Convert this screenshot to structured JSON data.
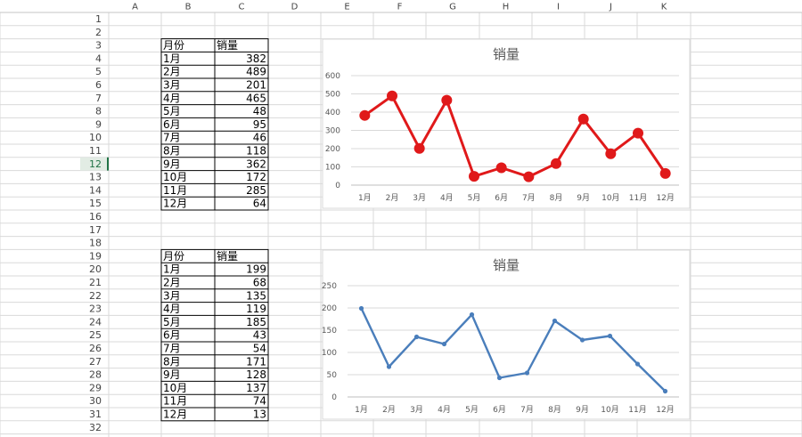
{
  "sheet": {
    "columns": [
      "A",
      "B",
      "C",
      "D",
      "E",
      "F",
      "G",
      "H",
      "I",
      "J",
      "K"
    ],
    "rows": [
      "1",
      "2",
      "3",
      "4",
      "5",
      "6",
      "7",
      "8",
      "9",
      "10",
      "11",
      "12",
      "13",
      "14",
      "15",
      "16",
      "17",
      "18",
      "19",
      "20",
      "21",
      "22",
      "23",
      "24",
      "25",
      "26",
      "27",
      "28",
      "29",
      "30",
      "31",
      "32"
    ],
    "selected_row": "12",
    "colors": {
      "grid": "#dadada",
      "header_bg": "#ffffff",
      "header_text": "#444444",
      "selected_header_bg": "#e2ece4",
      "selected_header_text": "#217346",
      "border": "#000000"
    }
  },
  "tables": [
    {
      "headers": [
        "月份",
        "销量"
      ],
      "rows": [
        [
          "1月",
          "382"
        ],
        [
          "2月",
          "489"
        ],
        [
          "3月",
          "201"
        ],
        [
          "4月",
          "465"
        ],
        [
          "5月",
          "48"
        ],
        [
          "6月",
          "95"
        ],
        [
          "7月",
          "46"
        ],
        [
          "8月",
          "118"
        ],
        [
          "9月",
          "362"
        ],
        [
          "10月",
          "172"
        ],
        [
          "11月",
          "285"
        ],
        [
          "12月",
          "64"
        ]
      ]
    },
    {
      "headers": [
        "月份",
        "销量"
      ],
      "rows": [
        [
          "1月",
          "199"
        ],
        [
          "2月",
          "68"
        ],
        [
          "3月",
          "135"
        ],
        [
          "4月",
          "119"
        ],
        [
          "5月",
          "185"
        ],
        [
          "6月",
          "43"
        ],
        [
          "7月",
          "54"
        ],
        [
          "8月",
          "171"
        ],
        [
          "9月",
          "128"
        ],
        [
          "10月",
          "137"
        ],
        [
          "11月",
          "74"
        ],
        [
          "12月",
          "13"
        ]
      ]
    }
  ],
  "chart_data": [
    {
      "type": "line",
      "title": "销量",
      "categories": [
        "1月",
        "2月",
        "3月",
        "4月",
        "5月",
        "6月",
        "7月",
        "8月",
        "9月",
        "10月",
        "11月",
        "12月"
      ],
      "values": [
        382,
        489,
        201,
        465,
        48,
        95,
        46,
        118,
        362,
        172,
        285,
        64
      ],
      "ylim": [
        0,
        600
      ],
      "yticks": [
        "0",
        "100",
        "200",
        "300",
        "400",
        "500",
        "600"
      ],
      "line_color": "#e0191a",
      "marker_color": "#e0191a",
      "marker": "large-circle",
      "grid": true
    },
    {
      "type": "line",
      "title": "销量",
      "categories": [
        "1月",
        "2月",
        "3月",
        "4月",
        "5月",
        "6月",
        "7月",
        "8月",
        "9月",
        "10月",
        "11月",
        "12月"
      ],
      "values": [
        199,
        68,
        135,
        119,
        185,
        43,
        54,
        171,
        128,
        137,
        74,
        13
      ],
      "ylim": [
        0,
        250
      ],
      "yticks": [
        "0",
        "50",
        "100",
        "150",
        "200",
        "250"
      ],
      "line_color": "#4a7ebb",
      "marker_color": "#4a7ebb",
      "marker": "small-circle",
      "grid": true
    }
  ]
}
